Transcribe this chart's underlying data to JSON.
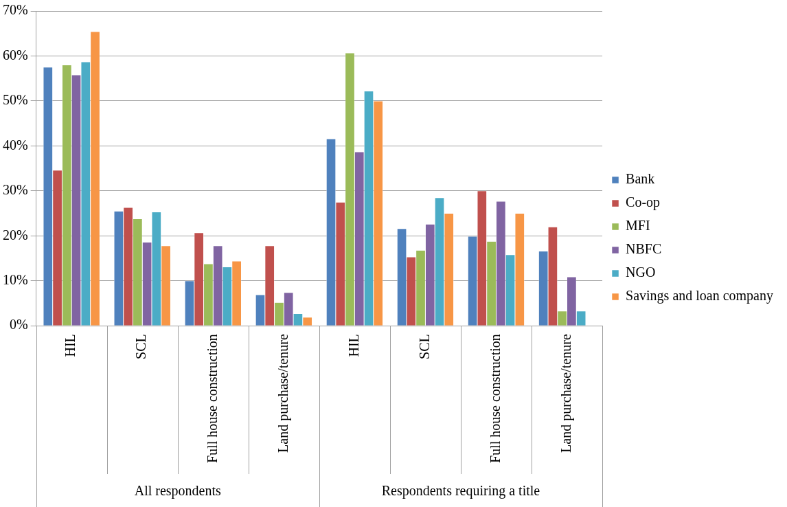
{
  "chart_data": {
    "type": "bar",
    "categories": [
      "HIL",
      "SCL",
      "Full house construction",
      "Land purchase/tenure",
      "HIL",
      "SCL",
      "Full house construction",
      "Land purchase/tenure"
    ],
    "series": [
      {
        "name": "Bank",
        "color": "#4f81bd",
        "values": [
          57.5,
          25.5,
          10.0,
          6.9,
          41.6,
          21.6,
          19.9,
          16.6
        ]
      },
      {
        "name": "Co-op",
        "color": "#c0504d",
        "values": [
          34.6,
          26.3,
          20.7,
          17.8,
          27.5,
          15.3,
          30.0,
          22.0
        ]
      },
      {
        "name": "MFI",
        "color": "#9bbb59",
        "values": [
          58.0,
          23.8,
          13.8,
          5.2,
          60.7,
          16.8,
          18.8,
          3.3
        ]
      },
      {
        "name": "NBFC",
        "color": "#8064a2",
        "values": [
          55.8,
          18.6,
          17.8,
          7.4,
          38.7,
          22.6,
          27.7,
          10.9
        ]
      },
      {
        "name": "NGO",
        "color": "#4bacc6",
        "values": [
          58.7,
          25.3,
          13.1,
          2.7,
          52.2,
          28.5,
          15.8,
          3.3
        ]
      },
      {
        "name": "Savings and loan company",
        "color": "#f79646",
        "values": [
          65.4,
          17.8,
          14.4,
          1.9,
          50.0,
          25.0,
          25.0,
          null
        ]
      }
    ],
    "ylim": [
      0,
      70
    ],
    "yticks": [
      {
        "value": 0,
        "label": "0%"
      },
      {
        "value": 10,
        "label": "10%"
      },
      {
        "value": 20,
        "label": "20%"
      },
      {
        "value": 30,
        "label": "30%"
      },
      {
        "value": 40,
        "label": "40%"
      },
      {
        "value": 50,
        "label": "50%"
      },
      {
        "value": 60,
        "label": "60%"
      },
      {
        "value": 70,
        "label": "70%"
      }
    ],
    "annotations": [
      "All respondents",
      "Respondents requiring a title"
    ],
    "grid": "y",
    "legend": "right"
  }
}
